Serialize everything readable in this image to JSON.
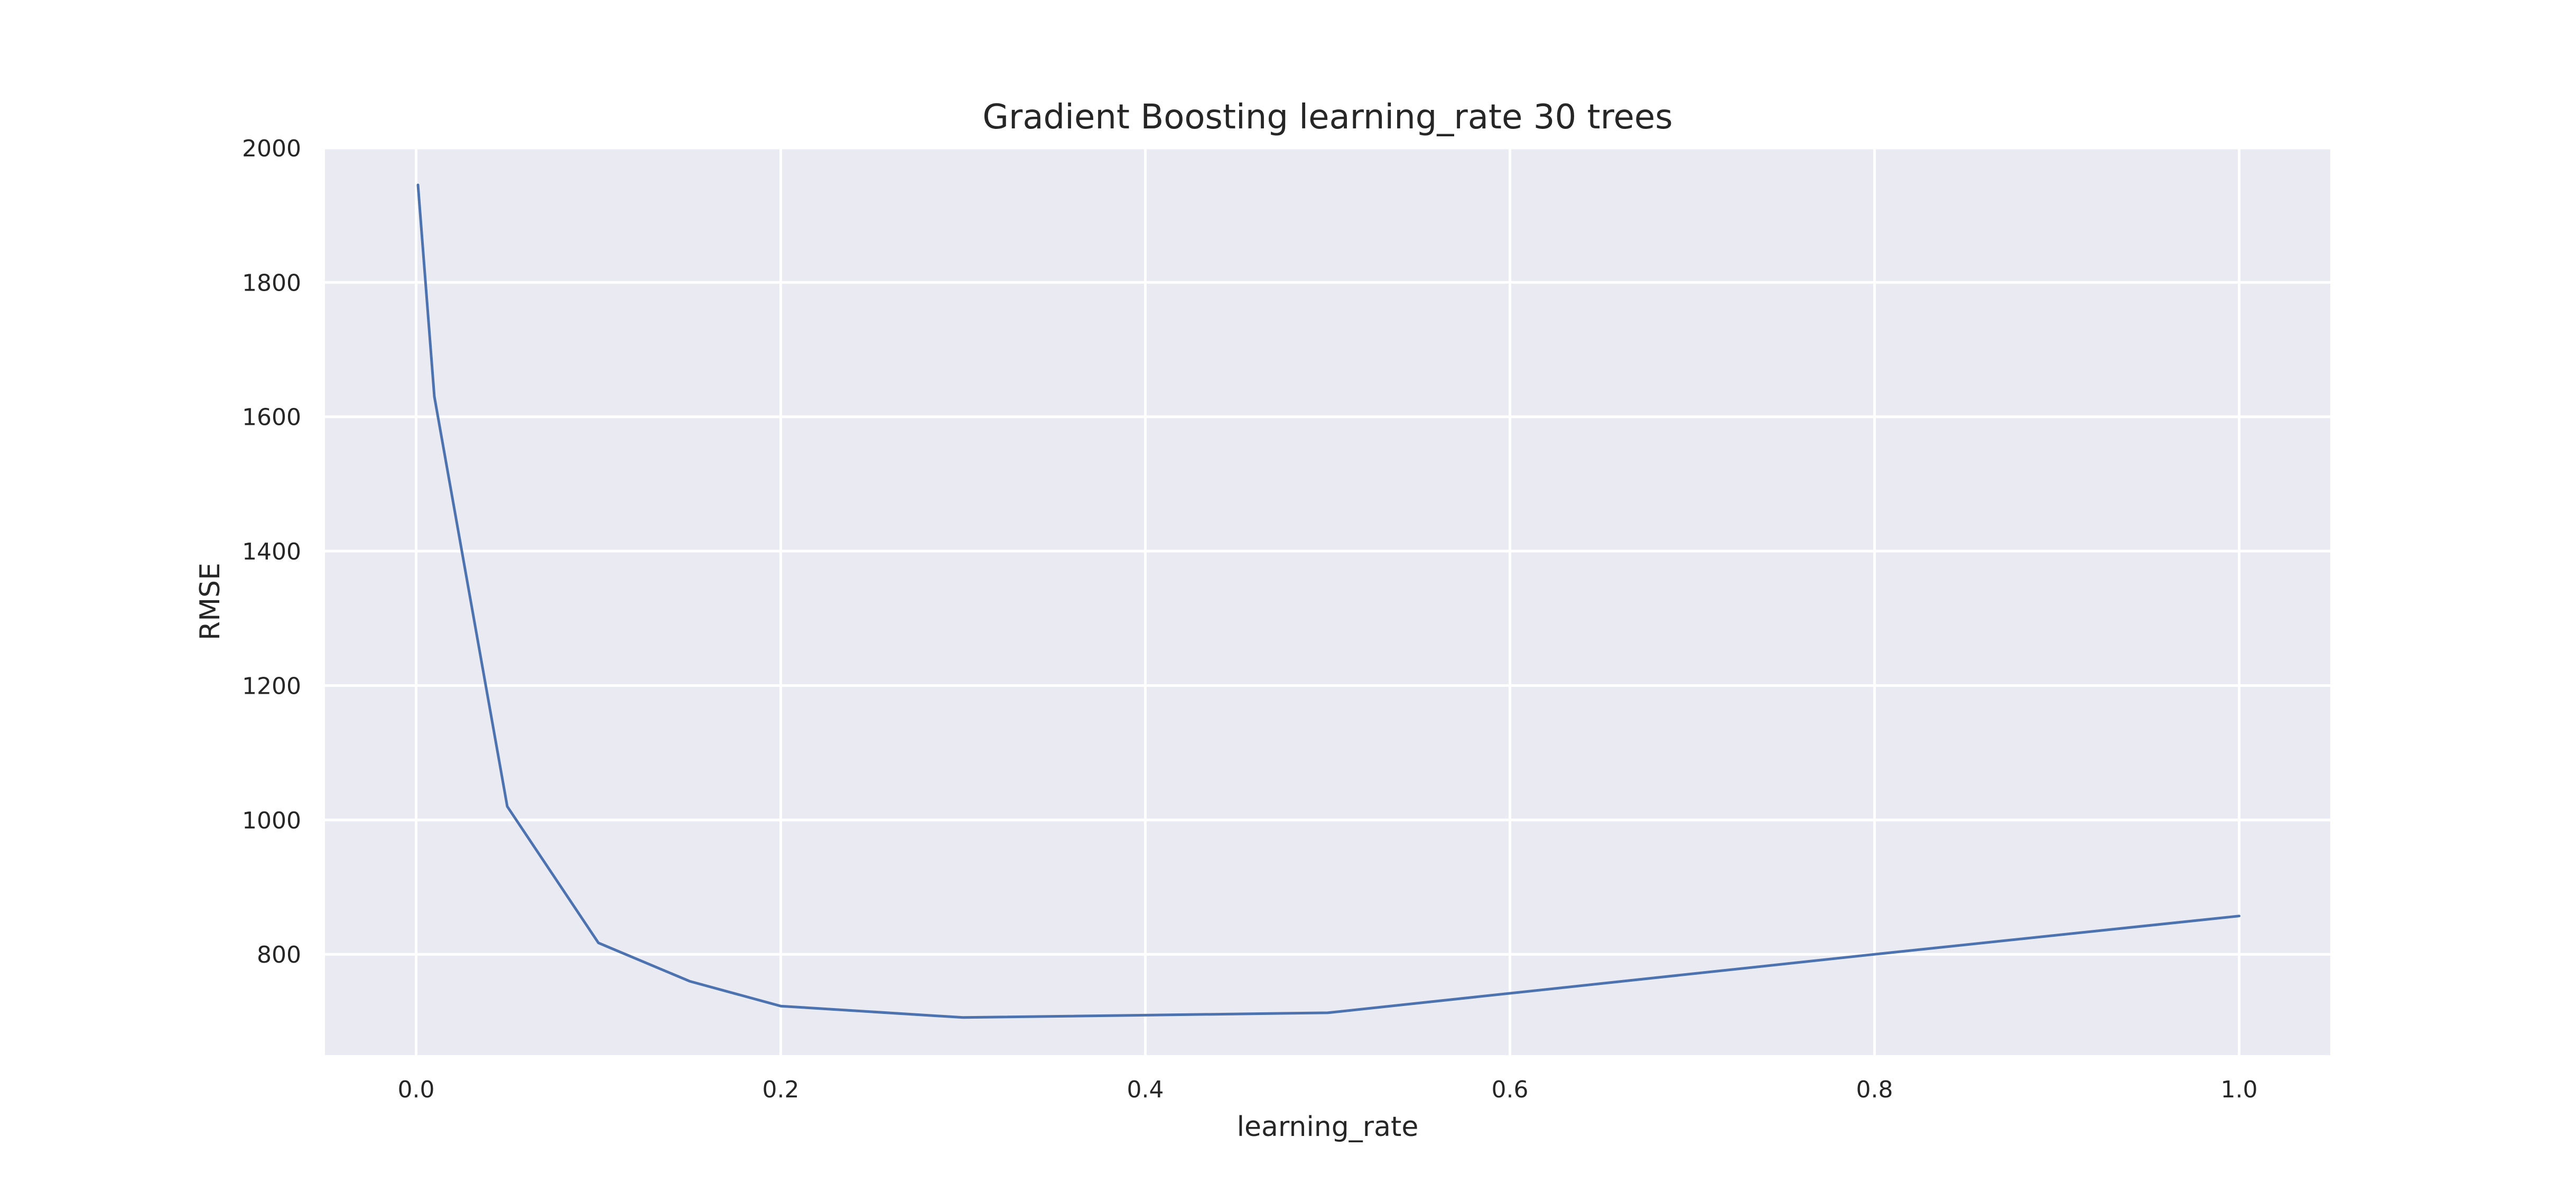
{
  "chart_data": {
    "type": "line",
    "title": "Gradient Boosting learning_rate 30 trees",
    "xlabel": "learning_rate",
    "ylabel": "RMSE",
    "xlim": [
      -0.05,
      1.05
    ],
    "ylim": [
      650,
      2000
    ],
    "xticks": [
      "0.0",
      "0.2",
      "0.4",
      "0.6",
      "0.8",
      "1.0"
    ],
    "xtick_values": [
      0.0,
      0.2,
      0.4,
      0.6,
      0.8,
      1.0
    ],
    "yticks": [
      "800",
      "1000",
      "1200",
      "1400",
      "1600",
      "1800",
      "2000"
    ],
    "ytick_values": [
      800,
      1000,
      1200,
      1400,
      1600,
      1800,
      2000
    ],
    "grid": true,
    "series": [
      {
        "color": "#4c72b0",
        "x": [
          0.001,
          0.01,
          0.05,
          0.1,
          0.15,
          0.2,
          0.3,
          0.5,
          0.8,
          1.0
        ],
        "y": [
          1945,
          1630,
          1020,
          817,
          760,
          723,
          706,
          713,
          800,
          857
        ]
      }
    ]
  }
}
